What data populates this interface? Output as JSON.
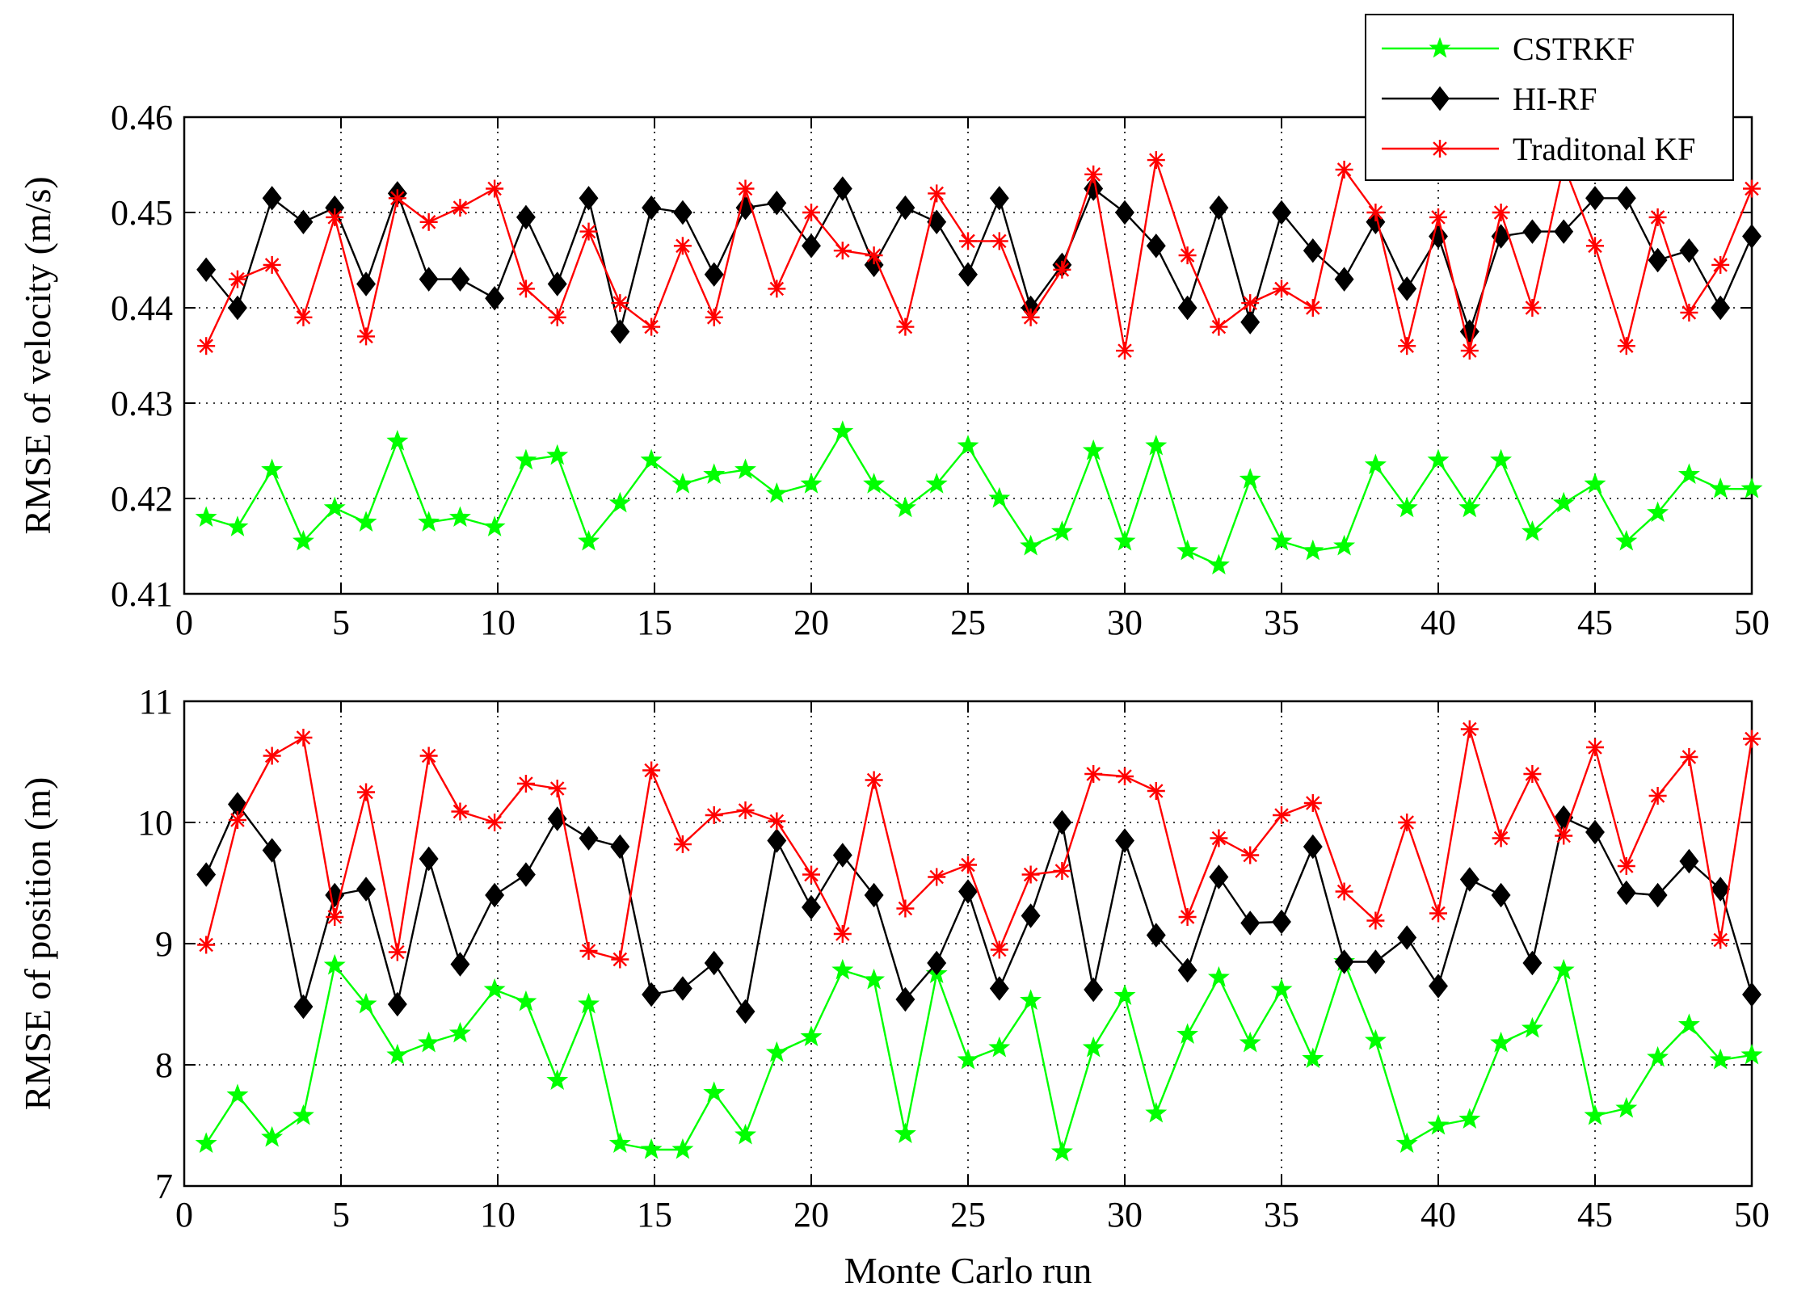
{
  "chart_data": [
    {
      "type": "line",
      "id": "velocity",
      "title": "",
      "xlabel": "",
      "ylabel": "RMSE of velocity (m/s)",
      "xlim": [
        0,
        50
      ],
      "ylim": [
        0.41,
        0.46
      ],
      "xticks": [
        0,
        5,
        10,
        15,
        20,
        25,
        30,
        35,
        40,
        45,
        50
      ],
      "xtick_labels": [
        "0",
        "5",
        "10",
        "15",
        "20",
        "25",
        "30",
        "35",
        "40",
        "45",
        "50"
      ],
      "yticks": [
        0.41,
        0.42,
        0.43,
        0.44,
        0.45,
        0.46
      ],
      "ytick_labels": [
        "0.41",
        "0.42",
        "0.43",
        "0.44",
        "0.45",
        "0.46"
      ],
      "grid": true,
      "x": [
        0.7,
        1.7,
        2.8,
        3.8,
        4.8,
        5.8,
        6.8,
        7.8,
        8.8,
        9.9,
        10.9,
        11.9,
        12.9,
        13.9,
        14.9,
        15.9,
        16.9,
        17.9,
        18.9,
        20.0,
        21.0,
        22.0,
        23.0,
        24.0,
        25.0,
        26.0,
        27.0,
        28.0,
        29.0,
        30.0,
        31.0,
        32.0,
        33.0,
        34.0,
        35.0,
        36.0,
        37.0,
        38.0,
        39.0,
        40.0,
        41.0,
        42.0,
        43.0,
        44.0,
        45.0,
        46.0,
        47.0,
        48.0,
        49.0,
        50.0
      ],
      "series": [
        {
          "name": "CSTRKF",
          "color": "#00ff00",
          "marker": "star",
          "values": [
            0.418,
            0.417,
            0.423,
            0.4155,
            0.419,
            0.4175,
            0.426,
            0.4175,
            0.418,
            0.417,
            0.424,
            0.4245,
            0.4155,
            0.4195,
            0.424,
            0.4215,
            0.4225,
            0.423,
            0.4205,
            0.4215,
            0.427,
            0.4215,
            0.419,
            0.4215,
            0.4255,
            0.42,
            0.415,
            0.4165,
            0.425,
            0.4155,
            0.4255,
            0.4145,
            0.413,
            0.422,
            0.4155,
            0.4145,
            0.415,
            0.4235,
            0.419,
            0.424,
            0.419,
            0.424,
            0.4165,
            0.4195,
            0.4215,
            0.4155,
            0.4185,
            0.4225,
            0.421,
            0.421
          ]
        },
        {
          "name": "HI-RF",
          "color": "#000000",
          "marker": "diamond",
          "values": [
            0.444,
            0.44,
            0.4515,
            0.449,
            0.4505,
            0.4425,
            0.452,
            0.443,
            0.443,
            0.441,
            0.4495,
            0.4425,
            0.4515,
            0.4375,
            0.4505,
            0.45,
            0.4435,
            0.4505,
            0.451,
            0.4465,
            0.4525,
            0.4445,
            0.4505,
            0.449,
            0.4435,
            0.4515,
            0.44,
            0.4445,
            0.4525,
            0.45,
            0.4465,
            0.44,
            0.4505,
            0.4385,
            0.45,
            0.446,
            0.443,
            0.449,
            0.442,
            0.4475,
            0.4375,
            0.4475,
            0.448,
            0.448,
            0.4515,
            0.4515,
            0.445,
            0.446,
            0.44,
            0.4475
          ]
        },
        {
          "name": "Traditonal KF",
          "color": "#ff0000",
          "marker": "asterisk",
          "values": [
            0.436,
            0.443,
            0.4445,
            0.439,
            0.4495,
            0.437,
            0.4515,
            0.449,
            0.4505,
            0.4525,
            0.442,
            0.439,
            0.448,
            0.4405,
            0.438,
            0.4465,
            0.439,
            0.4525,
            0.442,
            0.45,
            0.446,
            0.4455,
            0.438,
            0.452,
            0.447,
            0.447,
            0.439,
            0.444,
            0.454,
            0.4355,
            0.4555,
            0.4455,
            0.438,
            0.4405,
            0.442,
            0.44,
            0.4545,
            0.45,
            0.436,
            0.4495,
            0.4355,
            0.45,
            0.44,
            0.455,
            0.4465,
            0.436,
            0.4495,
            0.4395,
            0.4445,
            0.4525
          ]
        }
      ]
    },
    {
      "type": "line",
      "id": "position",
      "title": "",
      "xlabel": "Monte Carlo run",
      "ylabel": "RMSE of position (m)",
      "xlim": [
        0,
        50
      ],
      "ylim": [
        7,
        11
      ],
      "xticks": [
        0,
        5,
        10,
        15,
        20,
        25,
        30,
        35,
        40,
        45,
        50
      ],
      "xtick_labels": [
        "0",
        "5",
        "10",
        "15",
        "20",
        "25",
        "30",
        "35",
        "40",
        "45",
        "50"
      ],
      "yticks": [
        7,
        8,
        9,
        10,
        11
      ],
      "ytick_labels": [
        "7",
        "8",
        "9",
        "10",
        "11"
      ],
      "grid": true,
      "x": [
        0.7,
        1.7,
        2.8,
        3.8,
        4.8,
        5.8,
        6.8,
        7.8,
        8.8,
        9.9,
        10.9,
        11.9,
        12.9,
        13.9,
        14.9,
        15.9,
        16.9,
        17.9,
        18.9,
        20.0,
        21.0,
        22.0,
        23.0,
        24.0,
        25.0,
        26.0,
        27.0,
        28.0,
        29.0,
        30.0,
        31.0,
        32.0,
        33.0,
        34.0,
        35.0,
        36.0,
        37.0,
        38.0,
        39.0,
        40.0,
        41.0,
        42.0,
        43.0,
        44.0,
        45.0,
        46.0,
        47.0,
        48.0,
        49.0,
        50.0
      ],
      "series": [
        {
          "name": "CSTRKF",
          "color": "#00ff00",
          "marker": "star",
          "values": [
            7.35,
            7.75,
            7.4,
            7.58,
            8.82,
            8.5,
            8.08,
            8.18,
            8.26,
            8.62,
            8.52,
            7.87,
            8.5,
            7.35,
            7.3,
            7.3,
            7.77,
            7.42,
            8.1,
            8.23,
            8.78,
            8.7,
            7.43,
            8.75,
            8.04,
            8.14,
            8.53,
            7.28,
            8.14,
            8.57,
            7.6,
            8.25,
            8.72,
            8.18,
            8.62,
            8.05,
            8.85,
            8.2,
            7.35,
            7.5,
            7.55,
            8.18,
            8.3,
            8.78,
            7.58,
            7.64,
            8.06,
            8.33,
            8.04,
            8.08
          ]
        },
        {
          "name": "HI-RF",
          "color": "#000000",
          "marker": "diamond",
          "values": [
            9.57,
            10.15,
            9.77,
            8.48,
            9.4,
            9.45,
            8.5,
            9.7,
            8.83,
            9.4,
            9.57,
            10.03,
            9.87,
            9.8,
            8.58,
            8.63,
            8.84,
            8.44,
            9.85,
            9.3,
            9.73,
            9.4,
            8.54,
            8.84,
            9.43,
            8.63,
            9.23,
            10.0,
            8.62,
            9.85,
            9.07,
            8.78,
            9.55,
            9.17,
            9.18,
            9.8,
            8.85,
            8.85,
            9.05,
            8.65,
            9.53,
            9.4,
            8.84,
            10.04,
            9.92,
            9.42,
            9.4,
            9.68,
            9.45,
            8.58
          ]
        },
        {
          "name": "Traditonal KF",
          "color": "#ff0000",
          "marker": "asterisk",
          "values": [
            8.99,
            10.02,
            10.55,
            10.7,
            9.22,
            10.25,
            8.93,
            10.55,
            10.09,
            10.0,
            10.32,
            10.28,
            8.94,
            8.87,
            10.43,
            9.82,
            10.06,
            10.1,
            10.01,
            9.57,
            9.08,
            10.35,
            9.29,
            9.55,
            9.65,
            8.95,
            9.57,
            9.6,
            10.4,
            10.38,
            10.26,
            9.22,
            9.87,
            9.73,
            10.06,
            10.16,
            9.43,
            9.19,
            10.0,
            9.25,
            10.77,
            9.87,
            10.4,
            9.89,
            10.62,
            9.64,
            10.22,
            10.54,
            9.03,
            10.69
          ]
        }
      ]
    }
  ],
  "legend": {
    "position": "top-right",
    "entries": [
      "CSTRKF",
      "HI-RF",
      "Traditonal KF"
    ]
  }
}
